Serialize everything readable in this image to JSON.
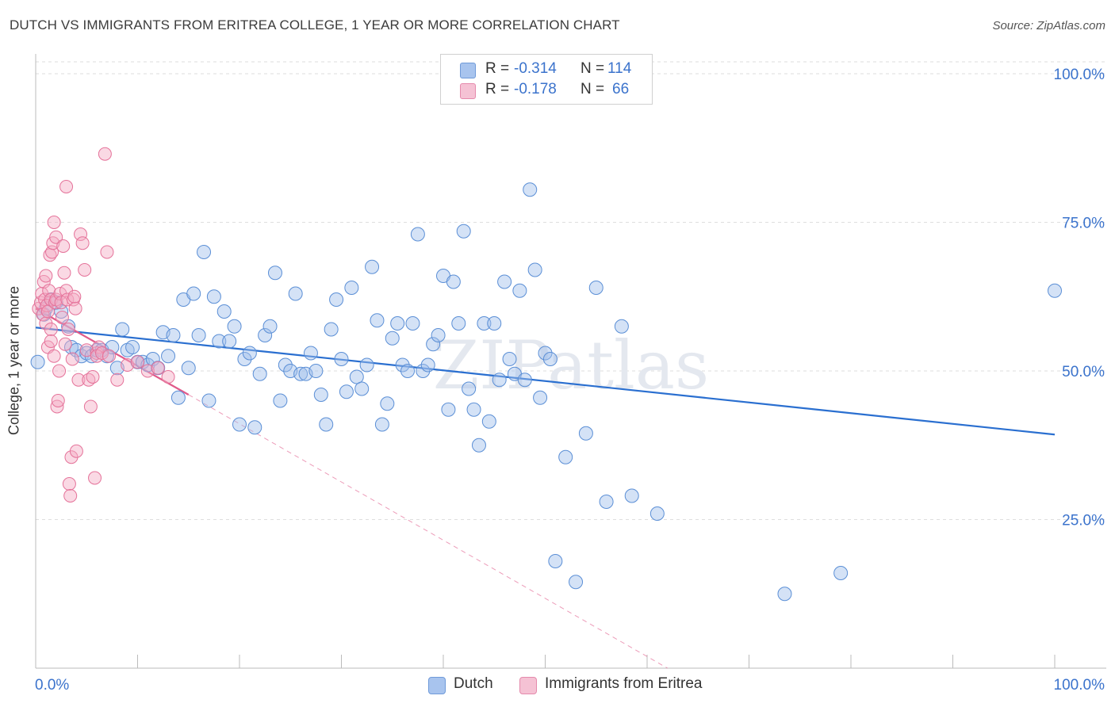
{
  "header": {
    "title": "DUTCH VS IMMIGRANTS FROM ERITREA COLLEGE, 1 YEAR OR MORE CORRELATION CHART",
    "source": "Source: ZipAtlas.com"
  },
  "watermark": "ZIPatlas",
  "legend": {
    "rows": [
      {
        "r_label": "R =",
        "r_value": "-0.314",
        "n_label": "N =",
        "n_value": "114",
        "color": "#a8c4ee"
      },
      {
        "r_label": "R =",
        "r_value": "-0.178",
        "n_label": "N =",
        "n_value": "66",
        "color": "#f5b3c8"
      }
    ]
  },
  "bottom_legend": [
    {
      "label": "Dutch",
      "color": "#a8c4ee"
    },
    {
      "label": "Immigrants from Eritrea",
      "color": "#f5b3c8"
    }
  ],
  "colors": {
    "dutch_fill": "rgba(160,190,235,0.45)",
    "dutch_stroke": "#5b8fd6",
    "dutch_line": "#2a6fd0",
    "eritrea_fill": "rgba(245,170,195,0.45)",
    "eritrea_stroke": "#e5739a",
    "eritrea_line": "#e05a8a",
    "axis_text": "#3b73cc",
    "grid": "#dedede"
  },
  "chart_data": {
    "type": "scatter",
    "title": "DUTCH VS IMMIGRANTS FROM ERITREA COLLEGE, 1 YEAR OR MORE CORRELATION CHART",
    "xlabel": "",
    "ylabel": "College, 1 year or more",
    "xlim": [
      0,
      100
    ],
    "ylim": [
      0,
      102
    ],
    "x_tick_labels": [
      "0.0%",
      "100.0%"
    ],
    "y_tick_labels": [
      "25.0%",
      "50.0%",
      "75.0%",
      "100.0%"
    ],
    "y_ticks": [
      25,
      50,
      75,
      100
    ],
    "grid": true,
    "legend_placement": "top-center",
    "series": [
      {
        "name": "Dutch",
        "r": -0.314,
        "n": 114,
        "trend": {
          "x": [
            0,
            100
          ],
          "y": [
            57.3,
            39.3
          ]
        },
        "points": [
          [
            0.2,
            51.5
          ],
          [
            0.8,
            59.5
          ],
          [
            1.0,
            60.5
          ],
          [
            1.5,
            62.0
          ],
          [
            2.0,
            61.5
          ],
          [
            2.5,
            60.0
          ],
          [
            3.2,
            57.5
          ],
          [
            3.5,
            54.0
          ],
          [
            4.0,
            53.5
          ],
          [
            4.5,
            52.5
          ],
          [
            5.0,
            53.0
          ],
          [
            5.5,
            52.5
          ],
          [
            6.0,
            53.5
          ],
          [
            6.5,
            53.5
          ],
          [
            7.0,
            52.5
          ],
          [
            7.5,
            54.0
          ],
          [
            8.0,
            50.5
          ],
          [
            8.5,
            57.0
          ],
          [
            9.0,
            53.5
          ],
          [
            9.5,
            54.0
          ],
          [
            10.0,
            51.5
          ],
          [
            10.5,
            51.5
          ],
          [
            11.0,
            51.0
          ],
          [
            11.5,
            52.0
          ],
          [
            12.0,
            50.5
          ],
          [
            12.5,
            56.5
          ],
          [
            13.0,
            52.5
          ],
          [
            13.5,
            56.0
          ],
          [
            14.0,
            45.5
          ],
          [
            14.5,
            62.0
          ],
          [
            15.0,
            50.5
          ],
          [
            15.5,
            63.0
          ],
          [
            16.0,
            56.0
          ],
          [
            16.5,
            70.0
          ],
          [
            17.0,
            45.0
          ],
          [
            17.5,
            62.5
          ],
          [
            18.0,
            55.0
          ],
          [
            18.5,
            60.0
          ],
          [
            19.0,
            55.0
          ],
          [
            19.5,
            57.5
          ],
          [
            20.0,
            41.0
          ],
          [
            20.5,
            52.0
          ],
          [
            21.0,
            53.0
          ],
          [
            21.5,
            40.5
          ],
          [
            22.0,
            49.5
          ],
          [
            22.5,
            56.0
          ],
          [
            23.0,
            57.5
          ],
          [
            23.5,
            66.5
          ],
          [
            24.0,
            45.0
          ],
          [
            24.5,
            51.0
          ],
          [
            25.0,
            50.0
          ],
          [
            25.5,
            63.0
          ],
          [
            26.0,
            49.5
          ],
          [
            26.5,
            49.5
          ],
          [
            27.0,
            53.0
          ],
          [
            27.5,
            50.0
          ],
          [
            28.0,
            46.0
          ],
          [
            28.5,
            41.0
          ],
          [
            29.0,
            57.0
          ],
          [
            29.5,
            62.0
          ],
          [
            30.0,
            52.0
          ],
          [
            30.5,
            46.5
          ],
          [
            31.0,
            64.0
          ],
          [
            31.5,
            49.0
          ],
          [
            32.0,
            47.0
          ],
          [
            32.5,
            51.0
          ],
          [
            33.0,
            67.5
          ],
          [
            33.5,
            58.5
          ],
          [
            34.0,
            41.0
          ],
          [
            34.5,
            44.5
          ],
          [
            35.0,
            55.5
          ],
          [
            35.5,
            58.0
          ],
          [
            36.0,
            51.0
          ],
          [
            36.5,
            50.0
          ],
          [
            37.0,
            58.0
          ],
          [
            37.5,
            73.0
          ],
          [
            38.0,
            50.0
          ],
          [
            38.5,
            51.0
          ],
          [
            39.0,
            54.5
          ],
          [
            39.5,
            56.0
          ],
          [
            40.0,
            66.0
          ],
          [
            40.5,
            43.5
          ],
          [
            41.0,
            65.0
          ],
          [
            41.5,
            58.0
          ],
          [
            42.0,
            73.5
          ],
          [
            42.5,
            47.0
          ],
          [
            43.0,
            43.5
          ],
          [
            43.5,
            37.5
          ],
          [
            44.0,
            58.0
          ],
          [
            44.5,
            41.5
          ],
          [
            45.0,
            58.0
          ],
          [
            45.5,
            48.5
          ],
          [
            46.0,
            65.0
          ],
          [
            46.5,
            52.0
          ],
          [
            47.0,
            49.5
          ],
          [
            47.5,
            63.5
          ],
          [
            48.0,
            48.5
          ],
          [
            48.5,
            80.5
          ],
          [
            49.0,
            67.0
          ],
          [
            49.5,
            45.5
          ],
          [
            50.0,
            53.0
          ],
          [
            50.5,
            52.0
          ],
          [
            51.0,
            18.0
          ],
          [
            52.0,
            35.5
          ],
          [
            53.0,
            14.5
          ],
          [
            54.0,
            39.5
          ],
          [
            55.0,
            64.0
          ],
          [
            56.0,
            28.0
          ],
          [
            57.5,
            57.5
          ],
          [
            58.5,
            29.0
          ],
          [
            61.0,
            26.0
          ],
          [
            73.5,
            12.5
          ],
          [
            79.0,
            16.0
          ],
          [
            100.0,
            63.5
          ]
        ]
      },
      {
        "name": "Immigrants from Eritrea",
        "r": -0.178,
        "n": 66,
        "trend": {
          "x": [
            0,
            15
          ],
          "y": [
            60.5,
            46.0
          ]
        },
        "trend_extension": {
          "x": [
            15,
            62
          ],
          "y": [
            46.0,
            0
          ]
        },
        "points": [
          [
            0.3,
            60.5
          ],
          [
            0.5,
            61.5
          ],
          [
            0.6,
            63.0
          ],
          [
            0.7,
            59.5
          ],
          [
            0.8,
            65.0
          ],
          [
            0.9,
            62.0
          ],
          [
            1.0,
            66.0
          ],
          [
            1.0,
            58.0
          ],
          [
            1.1,
            61.0
          ],
          [
            1.2,
            54.0
          ],
          [
            1.2,
            60.0
          ],
          [
            1.3,
            63.5
          ],
          [
            1.4,
            69.5
          ],
          [
            1.5,
            62.0
          ],
          [
            1.5,
            57.0
          ],
          [
            1.6,
            70.0
          ],
          [
            1.7,
            71.5
          ],
          [
            1.8,
            75.0
          ],
          [
            1.8,
            52.5
          ],
          [
            1.9,
            61.5
          ],
          [
            2.0,
            72.5
          ],
          [
            2.0,
            62.0
          ],
          [
            2.1,
            44.0
          ],
          [
            2.2,
            45.0
          ],
          [
            2.3,
            50.0
          ],
          [
            2.4,
            63.0
          ],
          [
            2.5,
            61.5
          ],
          [
            2.6,
            59.0
          ],
          [
            2.7,
            71.0
          ],
          [
            2.8,
            66.5
          ],
          [
            2.9,
            54.5
          ],
          [
            3.0,
            81.0
          ],
          [
            3.0,
            63.5
          ],
          [
            3.1,
            62.0
          ],
          [
            3.2,
            57.0
          ],
          [
            3.3,
            31.0
          ],
          [
            3.4,
            29.0
          ],
          [
            3.5,
            35.5
          ],
          [
            3.6,
            52.0
          ],
          [
            3.7,
            62.0
          ],
          [
            3.8,
            62.5
          ],
          [
            3.9,
            60.5
          ],
          [
            4.0,
            36.5
          ],
          [
            4.2,
            48.5
          ],
          [
            4.4,
            73.0
          ],
          [
            4.6,
            71.5
          ],
          [
            4.8,
            67.0
          ],
          [
            5.0,
            53.5
          ],
          [
            5.2,
            48.5
          ],
          [
            5.4,
            44.0
          ],
          [
            5.6,
            49.0
          ],
          [
            5.8,
            32.0
          ],
          [
            6.0,
            53.0
          ],
          [
            6.2,
            54.0
          ],
          [
            6.0,
            52.5
          ],
          [
            6.5,
            53.0
          ],
          [
            6.8,
            86.5
          ],
          [
            7.0,
            70.0
          ],
          [
            7.2,
            52.5
          ],
          [
            8.0,
            48.5
          ],
          [
            9.0,
            51.0
          ],
          [
            10.0,
            51.5
          ],
          [
            11.0,
            50.0
          ],
          [
            12.0,
            50.5
          ],
          [
            13.0,
            49.0
          ],
          [
            1.5,
            55.0
          ]
        ]
      }
    ]
  }
}
